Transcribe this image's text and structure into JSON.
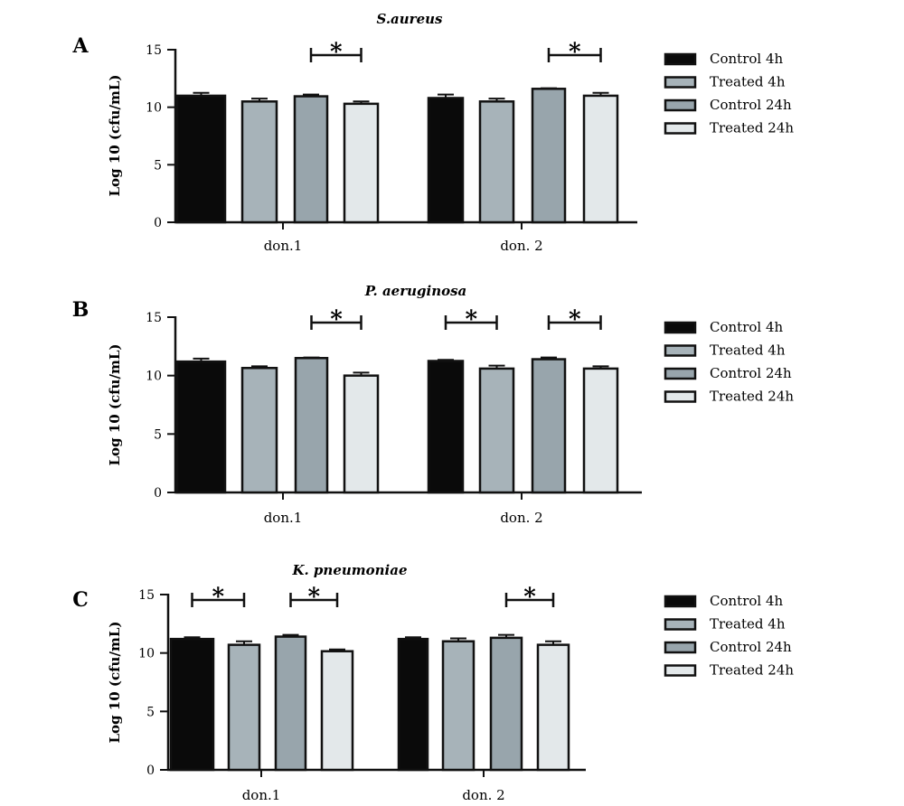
{
  "colors": {
    "control_4h": "#0a0a0a",
    "treated_4h": "#a7b3b9",
    "control_24h": "#98a5ac",
    "treated_24h": "#e3e8ea",
    "axis": "#111111"
  },
  "chart_data": [
    {
      "type": "bar",
      "panel_label": "A",
      "title": "S.aureus",
      "ylabel": "Log 10 (cfu/mL)",
      "ylim": [
        0,
        15
      ],
      "yticks": [
        "0",
        "5",
        "10",
        "15"
      ],
      "categories": [
        "don.1",
        "don. 2"
      ],
      "series": [
        {
          "name": "Control 4h",
          "values": [
            11.0,
            10.8
          ],
          "errors": [
            0.25,
            0.3
          ]
        },
        {
          "name": "Treated 4h",
          "values": [
            10.5,
            10.5
          ],
          "errors": [
            0.25,
            0.25
          ]
        },
        {
          "name": "Control 24h",
          "values": [
            10.95,
            11.6
          ],
          "errors": [
            0.15,
            0.05
          ]
        },
        {
          "name": "Treated 24h",
          "values": [
            10.3,
            11.0
          ],
          "errors": [
            0.2,
            0.25
          ]
        }
      ],
      "significance": [
        {
          "category": 0,
          "from": 2,
          "to": 3,
          "label": "*"
        },
        {
          "category": 1,
          "from": 2,
          "to": 3,
          "label": "*"
        }
      ]
    },
    {
      "type": "bar",
      "panel_label": "B",
      "title": "P. aeruginosa",
      "ylabel": "Log 10 (cfu/mL)",
      "ylim": [
        0,
        15
      ],
      "yticks": [
        "0",
        "5",
        "10",
        "15"
      ],
      "categories": [
        "don.1",
        "don. 2"
      ],
      "series": [
        {
          "name": "Control 4h",
          "values": [
            11.2,
            11.25
          ],
          "errors": [
            0.25,
            0.1
          ]
        },
        {
          "name": "Treated 4h",
          "values": [
            10.65,
            10.6
          ],
          "errors": [
            0.15,
            0.25
          ]
        },
        {
          "name": "Control 24h",
          "values": [
            11.5,
            11.4
          ],
          "errors": [
            0.05,
            0.15
          ]
        },
        {
          "name": "Treated 24h",
          "values": [
            10.0,
            10.6
          ],
          "errors": [
            0.25,
            0.2
          ]
        }
      ],
      "significance": [
        {
          "category": 0,
          "from": 2,
          "to": 3,
          "label": "*"
        },
        {
          "category": 1,
          "from": 0,
          "to": 1,
          "label": "*"
        },
        {
          "category": 1,
          "from": 2,
          "to": 3,
          "label": "*"
        }
      ]
    },
    {
      "type": "bar",
      "panel_label": "C",
      "title": "K. pneumoniae",
      "ylabel": "Log 10 (cfu/mL)",
      "ylim": [
        0,
        15
      ],
      "yticks": [
        "0",
        "5",
        "10",
        "15"
      ],
      "categories": [
        "don.1",
        "don. 2"
      ],
      "series": [
        {
          "name": "Control 4h",
          "values": [
            11.2,
            11.2
          ],
          "errors": [
            0.15,
            0.15
          ]
        },
        {
          "name": "Treated 4h",
          "values": [
            10.7,
            11.0
          ],
          "errors": [
            0.3,
            0.25
          ]
        },
        {
          "name": "Control 24h",
          "values": [
            11.4,
            11.3
          ],
          "errors": [
            0.15,
            0.25
          ]
        },
        {
          "name": "Treated 24h",
          "values": [
            10.15,
            10.7
          ],
          "errors": [
            0.15,
            0.3
          ]
        }
      ],
      "significance": [
        {
          "category": 0,
          "from": 0,
          "to": 1,
          "label": "*"
        },
        {
          "category": 0,
          "from": 2,
          "to": 3,
          "label": "*"
        },
        {
          "category": 1,
          "from": 2,
          "to": 3,
          "label": "*"
        }
      ]
    }
  ]
}
